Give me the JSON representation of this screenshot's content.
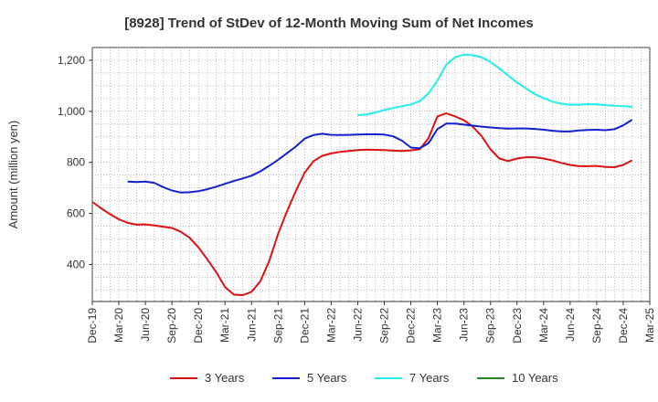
{
  "chart_data": {
    "type": "line",
    "title": "[8928]  Trend of StDev of 12-Month Moving Sum of Net Incomes",
    "ylabel": "Amount (million yen)",
    "xlabel": "",
    "x_ticks": [
      "Dec-19",
      "Mar-20",
      "Jun-20",
      "Sep-20",
      "Dec-20",
      "Mar-21",
      "Jun-21",
      "Sep-21",
      "Dec-21",
      "Mar-22",
      "Jun-22",
      "Sep-22",
      "Dec-22",
      "Mar-23",
      "Jun-23",
      "Sep-23",
      "Dec-23",
      "Mar-24",
      "Jun-24",
      "Sep-24",
      "Dec-24",
      "Mar-25"
    ],
    "y_ticks": [
      400,
      600,
      800,
      1000,
      1200
    ],
    "y_tick_labels": [
      "400",
      "600",
      "800",
      "1,000",
      "1,200"
    ],
    "ylim": [
      255,
      1250
    ],
    "xlim": [
      "2019-12",
      "2025-03"
    ],
    "grid": true,
    "legend_position": "bottom",
    "series": [
      {
        "name": "3 Years",
        "color": "#dd1111",
        "points": [
          [
            "2019-12",
            645
          ],
          [
            "2020-01",
            620
          ],
          [
            "2020-02",
            597
          ],
          [
            "2020-03",
            577
          ],
          [
            "2020-04",
            563
          ],
          [
            "2020-05",
            556
          ],
          [
            "2020-06",
            557
          ],
          [
            "2020-07",
            553
          ],
          [
            "2020-08",
            548
          ],
          [
            "2020-09",
            543
          ],
          [
            "2020-10",
            528
          ],
          [
            "2020-11",
            505
          ],
          [
            "2020-12",
            467
          ],
          [
            "2021-01",
            420
          ],
          [
            "2021-02",
            370
          ],
          [
            "2021-03",
            312
          ],
          [
            "2021-04",
            282
          ],
          [
            "2021-05",
            280
          ],
          [
            "2021-06",
            293
          ],
          [
            "2021-07",
            335
          ],
          [
            "2021-08",
            415
          ],
          [
            "2021-09",
            520
          ],
          [
            "2021-10",
            608
          ],
          [
            "2021-11",
            688
          ],
          [
            "2021-12",
            760
          ],
          [
            "2022-01",
            805
          ],
          [
            "2022-02",
            826
          ],
          [
            "2022-03",
            835
          ],
          [
            "2022-04",
            841
          ],
          [
            "2022-05",
            845
          ],
          [
            "2022-06",
            848
          ],
          [
            "2022-07",
            850
          ],
          [
            "2022-08",
            849
          ],
          [
            "2022-09",
            848
          ],
          [
            "2022-10",
            846
          ],
          [
            "2022-11",
            845
          ],
          [
            "2022-12",
            847
          ],
          [
            "2023-01",
            852
          ],
          [
            "2023-02",
            895
          ],
          [
            "2023-03",
            980
          ],
          [
            "2023-04",
            992
          ],
          [
            "2023-05",
            980
          ],
          [
            "2023-06",
            965
          ],
          [
            "2023-07",
            940
          ],
          [
            "2023-08",
            903
          ],
          [
            "2023-09",
            851
          ],
          [
            "2023-10",
            815
          ],
          [
            "2023-11",
            805
          ],
          [
            "2023-12",
            815
          ],
          [
            "2024-01",
            820
          ],
          [
            "2024-02",
            820
          ],
          [
            "2024-03",
            815
          ],
          [
            "2024-04",
            808
          ],
          [
            "2024-05",
            798
          ],
          [
            "2024-06",
            790
          ],
          [
            "2024-07",
            785
          ],
          [
            "2024-08",
            785
          ],
          [
            "2024-09",
            786
          ],
          [
            "2024-10",
            782
          ],
          [
            "2024-11",
            781
          ],
          [
            "2024-12",
            790
          ],
          [
            "2025-01",
            808
          ]
        ]
      },
      {
        "name": "5 Years",
        "color": "#1122cc",
        "points": [
          [
            "2020-04",
            725
          ],
          [
            "2020-05",
            723
          ],
          [
            "2020-06",
            725
          ],
          [
            "2020-07",
            720
          ],
          [
            "2020-08",
            703
          ],
          [
            "2020-09",
            690
          ],
          [
            "2020-10",
            682
          ],
          [
            "2020-11",
            683
          ],
          [
            "2020-12",
            687
          ],
          [
            "2021-01",
            695
          ],
          [
            "2021-02",
            705
          ],
          [
            "2021-03",
            716
          ],
          [
            "2021-04",
            727
          ],
          [
            "2021-05",
            737
          ],
          [
            "2021-06",
            748
          ],
          [
            "2021-07",
            765
          ],
          [
            "2021-08",
            787
          ],
          [
            "2021-09",
            810
          ],
          [
            "2021-10",
            836
          ],
          [
            "2021-11",
            862
          ],
          [
            "2021-12",
            893
          ],
          [
            "2022-01",
            907
          ],
          [
            "2022-02",
            912
          ],
          [
            "2022-03",
            908
          ],
          [
            "2022-04",
            907
          ],
          [
            "2022-05",
            908
          ],
          [
            "2022-06",
            909
          ],
          [
            "2022-07",
            910
          ],
          [
            "2022-08",
            910
          ],
          [
            "2022-09",
            909
          ],
          [
            "2022-10",
            902
          ],
          [
            "2022-11",
            885
          ],
          [
            "2022-12",
            858
          ],
          [
            "2023-01",
            855
          ],
          [
            "2023-02",
            875
          ],
          [
            "2023-03",
            930
          ],
          [
            "2023-04",
            952
          ],
          [
            "2023-05",
            952
          ],
          [
            "2023-06",
            948
          ],
          [
            "2023-07",
            944
          ],
          [
            "2023-08",
            940
          ],
          [
            "2023-09",
            937
          ],
          [
            "2023-10",
            934
          ],
          [
            "2023-11",
            932
          ],
          [
            "2023-12",
            933
          ],
          [
            "2024-01",
            933
          ],
          [
            "2024-02",
            931
          ],
          [
            "2024-03",
            928
          ],
          [
            "2024-04",
            924
          ],
          [
            "2024-05",
            921
          ],
          [
            "2024-06",
            921
          ],
          [
            "2024-07",
            925
          ],
          [
            "2024-08",
            927
          ],
          [
            "2024-09",
            928
          ],
          [
            "2024-10",
            926
          ],
          [
            "2024-11",
            930
          ],
          [
            "2024-12",
            945
          ],
          [
            "2025-01",
            967
          ]
        ]
      },
      {
        "name": "7 Years",
        "color": "#22eeee",
        "points": [
          [
            "2022-06",
            985
          ],
          [
            "2022-07",
            988
          ],
          [
            "2022-08",
            996
          ],
          [
            "2022-09",
            1005
          ],
          [
            "2022-10",
            1013
          ],
          [
            "2022-11",
            1020
          ],
          [
            "2022-12",
            1027
          ],
          [
            "2023-01",
            1040
          ],
          [
            "2023-02",
            1070
          ],
          [
            "2023-03",
            1120
          ],
          [
            "2023-04",
            1183
          ],
          [
            "2023-05",
            1212
          ],
          [
            "2023-06",
            1222
          ],
          [
            "2023-07",
            1220
          ],
          [
            "2023-08",
            1212
          ],
          [
            "2023-09",
            1193
          ],
          [
            "2023-10",
            1168
          ],
          [
            "2023-11",
            1140
          ],
          [
            "2023-12",
            1113
          ],
          [
            "2024-01",
            1090
          ],
          [
            "2024-02",
            1068
          ],
          [
            "2024-03",
            1052
          ],
          [
            "2024-04",
            1038
          ],
          [
            "2024-05",
            1030
          ],
          [
            "2024-06",
            1026
          ],
          [
            "2024-07",
            1026
          ],
          [
            "2024-08",
            1028
          ],
          [
            "2024-09",
            1027
          ],
          [
            "2024-10",
            1024
          ],
          [
            "2024-11",
            1022
          ],
          [
            "2024-12",
            1020
          ],
          [
            "2025-01",
            1018
          ]
        ]
      },
      {
        "name": "10 Years",
        "color": "#228822",
        "points": []
      }
    ]
  }
}
